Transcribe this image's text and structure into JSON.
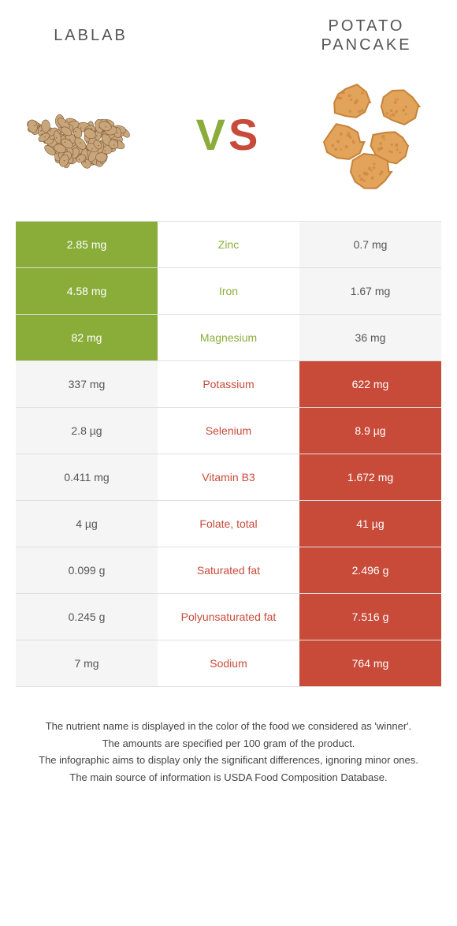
{
  "left": {
    "title": "LABLAB",
    "color": "#8aad3a"
  },
  "right": {
    "title": "POTATO\nPANCAKE",
    "color": "#c84b3a"
  },
  "vs": "VS",
  "rows": [
    {
      "l": "2.85 mg",
      "label": "Zinc",
      "r": "0.7 mg",
      "winner": "l"
    },
    {
      "l": "4.58 mg",
      "label": "Iron",
      "r": "1.67 mg",
      "winner": "l"
    },
    {
      "l": "82 mg",
      "label": "Magnesium",
      "r": "36 mg",
      "winner": "l"
    },
    {
      "l": "337 mg",
      "label": "Potassium",
      "r": "622 mg",
      "winner": "r"
    },
    {
      "l": "2.8 µg",
      "label": "Selenium",
      "r": "8.9 µg",
      "winner": "r"
    },
    {
      "l": "0.411 mg",
      "label": "Vitamin B3",
      "r": "1.672 mg",
      "winner": "r"
    },
    {
      "l": "4 µg",
      "label": "Folate, total",
      "r": "41 µg",
      "winner": "r"
    },
    {
      "l": "0.099 g",
      "label": "Saturated fat",
      "r": "2.496 g",
      "winner": "r"
    },
    {
      "l": "0.245 g",
      "label": "Polyunsaturated fat",
      "r": "7.516 g",
      "winner": "r"
    },
    {
      "l": "7 mg",
      "label": "Sodium",
      "r": "764 mg",
      "winner": "r"
    }
  ],
  "footer": [
    "The nutrient name is displayed in the color of the food we considered as 'winner'.",
    "The amounts are specified per 100 gram of the product.",
    "The infographic aims to display only the significant differences, ignoring minor ones.",
    "The main source of information is USDA Food Composition Database."
  ],
  "bean": {
    "fill": "#c9a57a",
    "stroke": "#7a5a3a"
  },
  "pancake": {
    "fill": "#e2a35a",
    "edge": "#c7823a"
  }
}
